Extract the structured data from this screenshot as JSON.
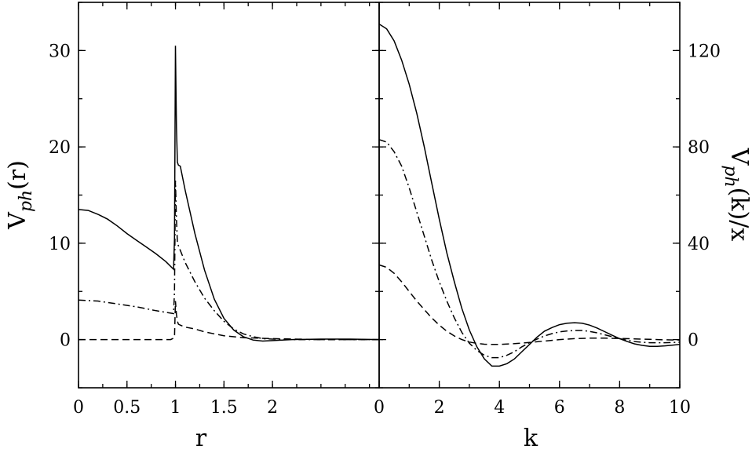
{
  "chart_data": [
    {
      "type": "line",
      "panel": "left",
      "xlabel": "r",
      "ylabel": "V_ph(r)",
      "ylabel_parts": {
        "base": "V",
        "sub": "ph",
        "rest": "(r)"
      },
      "xlim": [
        0,
        3.1
      ],
      "ylim": [
        -5,
        35
      ],
      "xticks": [
        0,
        0.5,
        1,
        1.5,
        2
      ],
      "xtick_labels": [
        "0",
        "0.5",
        "1",
        "1.5",
        "2"
      ],
      "yticks": [
        0,
        10,
        20,
        30
      ],
      "ytick_labels": [
        "0",
        "10",
        "20",
        "30"
      ],
      "grid": false,
      "series": [
        {
          "style": "solid",
          "x": [
            0,
            0.1,
            0.2,
            0.3,
            0.4,
            0.5,
            0.6,
            0.7,
            0.8,
            0.9,
            0.98,
            0.99,
            1.0,
            1.01,
            1.02,
            1.03,
            1.05,
            1.1,
            1.2,
            1.3,
            1.4,
            1.5,
            1.6,
            1.7,
            1.8,
            1.9,
            2.0,
            2.2,
            2.5,
            2.8,
            3.1
          ],
          "y": [
            13.5,
            13.4,
            13.0,
            12.5,
            11.8,
            11.0,
            10.3,
            9.6,
            8.9,
            8.1,
            7.3,
            10.5,
            30.5,
            22.0,
            18.4,
            18.1,
            18.0,
            15.5,
            11.0,
            7.2,
            4.2,
            2.2,
            1.0,
            0.3,
            -0.05,
            -0.15,
            -0.1,
            0.0,
            0.05,
            0.05,
            0.0
          ]
        },
        {
          "style": "dashdot",
          "x": [
            0,
            0.2,
            0.4,
            0.6,
            0.8,
            0.98,
            0.99,
            1.0,
            1.01,
            1.02,
            1.04,
            1.1,
            1.2,
            1.3,
            1.4,
            1.5,
            1.6,
            1.7,
            1.8,
            1.9,
            2.0,
            2.2,
            2.5,
            2.8,
            3.1
          ],
          "y": [
            4.1,
            4.0,
            3.7,
            3.4,
            3.0,
            2.7,
            5.0,
            16.5,
            12.5,
            10.0,
            9.5,
            8.0,
            6.0,
            4.3,
            3.0,
            1.9,
            1.1,
            0.6,
            0.3,
            0.1,
            0.05,
            0.0,
            0.0,
            0.0,
            0.0
          ]
        },
        {
          "style": "dashed",
          "x": [
            0,
            0.5,
            0.95,
            0.99,
            1.0,
            1.01,
            1.02,
            1.03,
            1.05,
            1.1,
            1.2,
            1.3,
            1.4,
            1.5,
            1.7,
            2.0,
            2.5,
            3.1
          ],
          "y": [
            0,
            0,
            0,
            0.2,
            4.0,
            2.6,
            1.9,
            1.6,
            1.5,
            1.3,
            1.1,
            0.8,
            0.6,
            0.4,
            0.2,
            0.1,
            0.0,
            0.0
          ]
        }
      ]
    },
    {
      "type": "line",
      "panel": "right",
      "xlabel": "k",
      "ylabel": "V_ph(k)/x",
      "ylabel_parts": {
        "base": "V",
        "sub": "ph",
        "rest": "(k)/x"
      },
      "xlim": [
        0,
        10
      ],
      "ylim": [
        -20,
        140
      ],
      "xticks": [
        0,
        2,
        4,
        6,
        8,
        10
      ],
      "xtick_labels": [
        "0",
        "2",
        "4",
        "6",
        "8",
        "10"
      ],
      "yticks": [
        0,
        40,
        80,
        120
      ],
      "ytick_labels": [
        "0",
        "40",
        "80",
        "120"
      ],
      "grid": false,
      "series": [
        {
          "style": "solid",
          "x": [
            0,
            0.25,
            0.5,
            0.75,
            1.0,
            1.25,
            1.5,
            1.75,
            2.0,
            2.25,
            2.5,
            2.75,
            3.0,
            3.25,
            3.5,
            3.75,
            4.0,
            4.25,
            4.5,
            4.75,
            5.0,
            5.25,
            5.5,
            5.75,
            6.0,
            6.25,
            6.5,
            6.75,
            7.0,
            7.25,
            7.5,
            7.75,
            8.0,
            8.25,
            8.5,
            8.75,
            9.0,
            9.25,
            9.5,
            9.75,
            10.0
          ],
          "y": [
            131,
            129,
            124,
            116,
            106,
            94,
            80,
            65,
            50,
            36,
            24,
            13,
            4,
            -3,
            -8,
            -11,
            -11,
            -10,
            -8,
            -5,
            -2,
            1,
            3.5,
            5,
            6.2,
            6.8,
            7,
            6.8,
            6,
            4.8,
            3.3,
            1.8,
            0.4,
            -0.8,
            -1.8,
            -2.4,
            -2.8,
            -2.8,
            -2.6,
            -2.3,
            -2.0
          ]
        },
        {
          "style": "dashdot",
          "x": [
            0,
            0.25,
            0.5,
            0.75,
            1.0,
            1.25,
            1.5,
            1.75,
            2.0,
            2.25,
            2.5,
            2.75,
            3.0,
            3.25,
            3.5,
            3.75,
            4.0,
            4.25,
            4.5,
            4.75,
            5.0,
            5.25,
            5.5,
            5.75,
            6.0,
            6.25,
            6.5,
            6.75,
            7.0,
            7.25,
            7.5,
            7.75,
            8.0,
            8.25,
            8.5,
            8.75,
            9.0,
            9.5,
            10.0
          ],
          "y": [
            83,
            82,
            78,
            72,
            63,
            53,
            43,
            33,
            24,
            16,
            9,
            3,
            -1.5,
            -4.5,
            -6.5,
            -7.5,
            -7.5,
            -6.5,
            -5,
            -3,
            -1.3,
            0.2,
            1.5,
            2.5,
            3.2,
            3.6,
            3.8,
            3.8,
            3.4,
            2.8,
            2,
            1.2,
            0.4,
            -0.3,
            -0.8,
            -1.1,
            -1.3,
            -1.3,
            -1.1
          ]
        },
        {
          "style": "dashed",
          "x": [
            0,
            0.25,
            0.5,
            0.75,
            1.0,
            1.25,
            1.5,
            1.75,
            2.0,
            2.25,
            2.5,
            2.75,
            3.0,
            3.25,
            3.5,
            3.75,
            4.0,
            4.5,
            5.0,
            5.5,
            6.0,
            6.5,
            7.0,
            7.5,
            8.0,
            8.5,
            9.0,
            9.5,
            10.0
          ],
          "y": [
            31,
            30,
            27.5,
            24,
            20,
            16,
            12.5,
            9,
            6,
            3.5,
            1.5,
            0,
            -1,
            -1.6,
            -1.9,
            -2,
            -2,
            -1.7,
            -1.2,
            -0.6,
            0,
            0.4,
            0.6,
            0.6,
            0.5,
            0.3,
            0.1,
            -0.1,
            -0.2
          ]
        }
      ]
    }
  ]
}
